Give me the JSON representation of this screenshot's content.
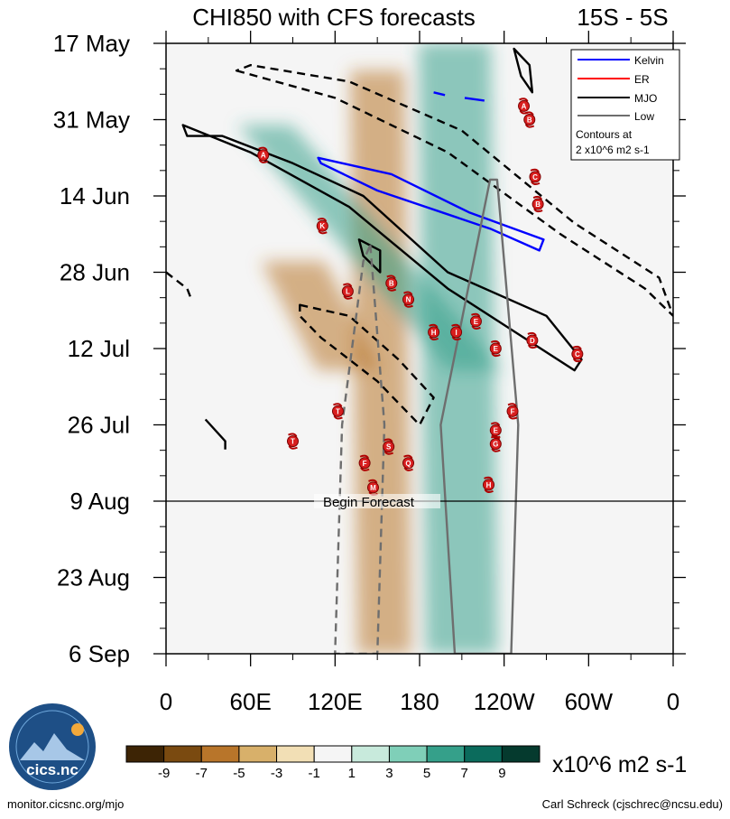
{
  "chart_data": {
    "type": "heatmap",
    "title": "CHI850 with CFS forecasts",
    "region": "15S - 5S",
    "y_ticks": [
      "17 May",
      "31 May",
      "14 Jun",
      "28 Jun",
      "12 Jul",
      "26 Jul",
      "9 Aug",
      "23 Aug",
      "6 Sep"
    ],
    "x_ticks": [
      "0",
      "60E",
      "120E",
      "180",
      "120W",
      "60W",
      "0"
    ],
    "x_range_deg": [
      0,
      360
    ],
    "y_range_days": [
      0,
      112
    ],
    "forecast_start_day": 84,
    "forecast_label": "Begin Forecast",
    "legend": {
      "entries": [
        {
          "label": "Kelvin",
          "color": "#0000ff"
        },
        {
          "label": "ER",
          "color": "#ff0000"
        },
        {
          "label": "MJO",
          "color": "#000000"
        },
        {
          "label": "Low",
          "color": "#6e6e6e"
        }
      ],
      "note_line1": "Contours at",
      "note_line2": "2 x10^6 m2 s-1"
    },
    "colorbar": {
      "levels": [
        "-9",
        "-7",
        "-5",
        "-3",
        "-1",
        "1",
        "3",
        "5",
        "7",
        "9"
      ],
      "colors": [
        "#3d2405",
        "#7a4a10",
        "#b8752a",
        "#d8b06a",
        "#f2dfb5",
        "#f5f5f5",
        "#c8eadc",
        "#7fcfb8",
        "#35a08a",
        "#0b6b5c",
        "#053a2e"
      ],
      "units": "x10^6 m2 s-1"
    },
    "anomaly_bands": [
      {
        "kind": "dry",
        "lon0": 150,
        "lon1": 155,
        "day0": 5,
        "day1": 112,
        "width": 60
      },
      {
        "kind": "wet",
        "lon0": 205,
        "lon1": 210,
        "day0": 0,
        "day1": 112,
        "width": 80
      },
      {
        "kind": "wet",
        "lon0": 70,
        "lon1": 220,
        "day0": 15,
        "day1": 60,
        "width": 60
      },
      {
        "kind": "dry",
        "lon0": 90,
        "lon1": 130,
        "day0": 40,
        "day1": 60,
        "width": 70
      }
    ],
    "contours": [
      {
        "type": "Kelvin",
        "style": "solid",
        "points": [
          [
            108,
            21
          ],
          [
            160,
            24
          ],
          [
            215,
            31
          ],
          [
            268,
            36
          ],
          [
            265,
            38
          ],
          [
            230,
            34
          ],
          [
            150,
            27
          ],
          [
            110,
            22
          ]
        ]
      },
      {
        "type": "Kelvin",
        "style": "solid",
        "points": [
          [
            212,
            10
          ],
          [
            226,
            10.5
          ]
        ]
      },
      {
        "type": "Kelvin",
        "style": "solid",
        "points": [
          [
            190,
            9
          ],
          [
            198,
            9.5
          ]
        ]
      },
      {
        "type": "MJO",
        "style": "solid",
        "points": [
          [
            12,
            15
          ],
          [
            60,
            20
          ],
          [
            130,
            30
          ],
          [
            200,
            45
          ],
          [
            260,
            55
          ],
          [
            290,
            60
          ],
          [
            295,
            58
          ],
          [
            270,
            50
          ],
          [
            200,
            42
          ],
          [
            140,
            28
          ],
          [
            90,
            22
          ],
          [
            40,
            17
          ],
          [
            15,
            17
          ]
        ]
      },
      {
        "type": "MJO",
        "style": "solid",
        "points": [
          [
            247,
            1
          ],
          [
            258,
            4
          ],
          [
            260,
            9
          ],
          [
            252,
            6
          ]
        ]
      },
      {
        "type": "MJO",
        "style": "solid",
        "points": [
          [
            137,
            36
          ],
          [
            152,
            38
          ],
          [
            152,
            42
          ],
          [
            140,
            39
          ]
        ]
      },
      {
        "type": "MJO",
        "style": "solid",
        "points": [
          [
            28,
            69
          ],
          [
            42,
            73
          ],
          [
            42,
            74.5
          ]
        ]
      },
      {
        "type": "MJO",
        "style": "dashed",
        "points": [
          [
            50,
            5
          ],
          [
            120,
            10
          ],
          [
            200,
            20
          ],
          [
            280,
            35
          ],
          [
            340,
            45
          ],
          [
            360,
            50
          ],
          [
            350,
            43
          ],
          [
            290,
            33
          ],
          [
            210,
            16
          ],
          [
            130,
            7
          ],
          [
            60,
            4
          ]
        ]
      },
      {
        "type": "MJO",
        "style": "dashed",
        "points": [
          [
            95,
            48
          ],
          [
            130,
            50
          ],
          [
            165,
            58
          ],
          [
            190,
            65
          ],
          [
            180,
            70
          ],
          [
            150,
            62
          ],
          [
            110,
            54
          ],
          [
            95,
            50
          ]
        ]
      },
      {
        "type": "MJO",
        "style": "dashed",
        "points": [
          [
            0,
            42
          ],
          [
            15,
            45
          ],
          [
            18,
            47
          ]
        ]
      },
      {
        "type": "Low",
        "style": "dashed",
        "points": [
          [
            145,
            37
          ],
          [
            155,
            70
          ],
          [
            150,
            112
          ],
          [
            120,
            112
          ],
          [
            125,
            70
          ],
          [
            140,
            40
          ]
        ]
      },
      {
        "type": "Low",
        "style": "solid",
        "points": [
          [
            235,
            25
          ],
          [
            250,
            70
          ],
          [
            245,
            112
          ],
          [
            205,
            112
          ],
          [
            195,
            70
          ],
          [
            230,
            25
          ]
        ]
      }
    ],
    "storms": [
      {
        "label": "A",
        "lon": 254,
        "day": 11.5
      },
      {
        "label": "B",
        "lon": 258,
        "day": 14
      },
      {
        "label": "A",
        "lon": 69,
        "day": 20.5
      },
      {
        "label": "C",
        "lon": 262,
        "day": 24.5
      },
      {
        "label": "B",
        "lon": 264,
        "day": 29.5
      },
      {
        "label": "K",
        "lon": 111,
        "day": 33.5
      },
      {
        "label": "B",
        "lon": 160,
        "day": 44
      },
      {
        "label": "L",
        "lon": 129,
        "day": 45.5
      },
      {
        "label": "N",
        "lon": 172,
        "day": 47
      },
      {
        "label": "E",
        "lon": 220,
        "day": 51
      },
      {
        "label": "H",
        "lon": 190,
        "day": 53
      },
      {
        "label": "I",
        "lon": 206,
        "day": 53
      },
      {
        "label": "D",
        "lon": 260,
        "day": 54.5
      },
      {
        "label": "E",
        "lon": 234,
        "day": 56
      },
      {
        "label": "C",
        "lon": 292,
        "day": 57
      },
      {
        "label": "T",
        "lon": 122,
        "day": 67.5
      },
      {
        "label": "F",
        "lon": 246,
        "day": 67.5
      },
      {
        "label": "E",
        "lon": 234,
        "day": 71
      },
      {
        "label": "T",
        "lon": 90,
        "day": 73
      },
      {
        "label": "S",
        "lon": 158,
        "day": 74
      },
      {
        "label": "G",
        "lon": 234,
        "day": 73.5
      },
      {
        "label": "F",
        "lon": 141,
        "day": 77
      },
      {
        "label": "Q",
        "lon": 172,
        "day": 77
      },
      {
        "label": "H",
        "lon": 229,
        "day": 81
      },
      {
        "label": "M",
        "lon": 147,
        "day": 81.5
      }
    ]
  },
  "footer": {
    "left": "monitor.cicsnc.org/mjo",
    "right": "Carl Schreck (cjschrec@ncsu.edu)"
  },
  "logo": {
    "text": "cics.nc",
    "ring_text": "Cooperative Institute for Climate and Satellites"
  }
}
